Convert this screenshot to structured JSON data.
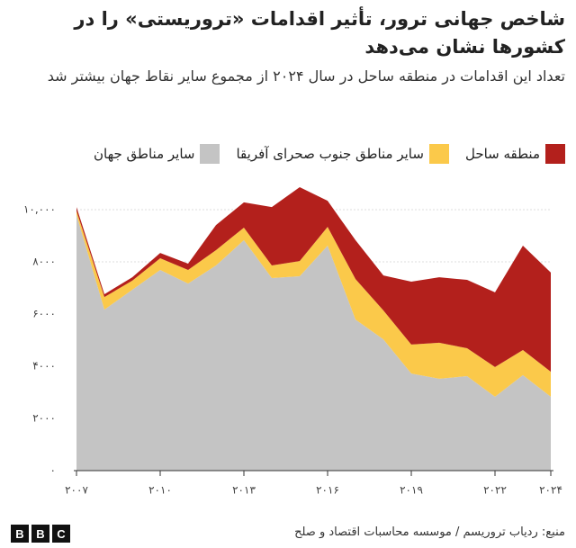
{
  "chart_data": {
    "type": "stacked-area",
    "title": "شاخص جهانی ترور، تأثیر اقدامات «تروریستی» را در کشورها نشان می‌دهد",
    "subtitle": "تعداد این اقدامات در  منطقه ساحل در سال ۲۰۲۴ از مجموع سایر نقاط جهان بیشتر شد",
    "x": [
      2007,
      2008,
      2009,
      2010,
      2011,
      2012,
      2013,
      2014,
      2015,
      2016,
      2017,
      2018,
      2019,
      2020,
      2021,
      2022,
      2023,
      2024
    ],
    "series": [
      {
        "name": "سایر مناطق جهان",
        "color": "#c4c4c4",
        "values": [
          9800,
          6170,
          6930,
          7690,
          7170,
          7860,
          8830,
          7380,
          7450,
          8620,
          5790,
          5030,
          3720,
          3520,
          3620,
          2830,
          3660,
          2830
        ]
      },
      {
        "name": "سایر مناطق جنوب صحرای آفریقا",
        "color": "#fbc94a",
        "values": [
          150,
          480,
          350,
          450,
          520,
          590,
          480,
          480,
          580,
          720,
          1550,
          1110,
          1110,
          1380,
          1070,
          1140,
          960,
          960
        ]
      },
      {
        "name": "منطقه ساحل",
        "color": "#b3201c",
        "values": [
          150,
          110,
          130,
          200,
          240,
          960,
          970,
          2240,
          2830,
          1000,
          1490,
          1340,
          2410,
          2510,
          2620,
          2860,
          4000,
          3800
        ]
      }
    ],
    "xlim": [
      2007,
      2024
    ],
    "xticks": [
      {
        "value": 2007,
        "label": "۲۰۰۷"
      },
      {
        "value": 2010,
        "label": "۲۰۱۰"
      },
      {
        "value": 2013,
        "label": "۲۰۱۳"
      },
      {
        "value": 2016,
        "label": "۲۰۱۶"
      },
      {
        "value": 2019,
        "label": "۲۰۱۹"
      },
      {
        "value": 2022,
        "label": "۲۰۲۲"
      },
      {
        "value": 2024,
        "label": "۲۰۲۴"
      }
    ],
    "ylim": [
      0,
      10000
    ],
    "yticks": [
      {
        "value": 0,
        "label": "۰"
      },
      {
        "value": 2000,
        "label": "۲۰۰۰"
      },
      {
        "value": 4000,
        "label": "۴۰۰۰"
      },
      {
        "value": 6000,
        "label": "۶۰۰۰"
      },
      {
        "value": 8000,
        "label": "۸۰۰۰"
      },
      {
        "value": 10000,
        "label": "۱۰,۰۰۰"
      }
    ],
    "grid": true,
    "source": "منبع: ردیاب تروریسم / موسسه محاسبات اقتصاد و صلح"
  },
  "logo": [
    "B",
    "B",
    "C"
  ]
}
